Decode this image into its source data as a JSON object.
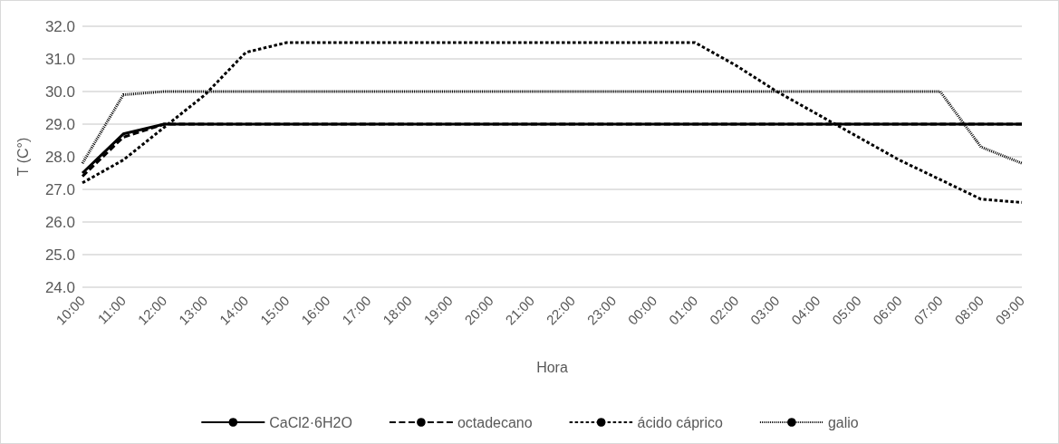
{
  "chart_data": {
    "type": "line",
    "xlabel": "Hora",
    "ylabel": "T (C°)",
    "categories": [
      "10:00",
      "11:00",
      "12:00",
      "13:00",
      "14:00",
      "15:00",
      "16:00",
      "17:00",
      "18:00",
      "19:00",
      "20:00",
      "21:00",
      "22:00",
      "23:00",
      "00:00",
      "01:00",
      "02:00",
      "03:00",
      "04:00",
      "05:00",
      "06:00",
      "07:00",
      "08:00",
      "09:00"
    ],
    "series": [
      {
        "name": "CaCl2·6H2O",
        "color": "#000000",
        "line_style": "solid",
        "values": [
          27.5,
          28.7,
          29.0,
          29.0,
          29.0,
          29.0,
          29.0,
          29.0,
          29.0,
          29.0,
          29.0,
          29.0,
          29.0,
          29.0,
          29.0,
          29.0,
          29.0,
          29.0,
          29.0,
          29.0,
          29.0,
          29.0,
          29.0,
          29.0
        ]
      },
      {
        "name": "octadecano",
        "color": "#000000",
        "line_style": "longdash",
        "values": [
          27.4,
          28.6,
          29.0,
          29.0,
          29.0,
          29.0,
          29.0,
          29.0,
          29.0,
          29.0,
          29.0,
          29.0,
          29.0,
          29.0,
          29.0,
          29.0,
          29.0,
          29.0,
          29.0,
          29.0,
          29.0,
          29.0,
          29.0,
          29.0
        ]
      },
      {
        "name": "ácido cáprico",
        "color": "#000000",
        "line_style": "dashed",
        "values": [
          27.2,
          27.9,
          28.9,
          29.9,
          31.2,
          31.5,
          31.5,
          31.5,
          31.5,
          31.5,
          31.5,
          31.5,
          31.5,
          31.5,
          31.5,
          31.5,
          30.8,
          30.0,
          29.3,
          28.6,
          27.9,
          27.3,
          26.7,
          26.6
        ]
      },
      {
        "name": "galio",
        "color": "#000000",
        "line_style": "dotted",
        "values": [
          27.8,
          29.9,
          30.0,
          30.0,
          30.0,
          30.0,
          30.0,
          30.0,
          30.0,
          30.0,
          30.0,
          30.0,
          30.0,
          30.0,
          30.0,
          30.0,
          30.0,
          30.0,
          30.0,
          30.0,
          30.0,
          30.0,
          28.3,
          27.8
        ]
      }
    ],
    "ylim": [
      24,
      32
    ],
    "yticks": [
      {
        "value": 24,
        "label": "24.0"
      },
      {
        "value": 25,
        "label": "25.0"
      },
      {
        "value": 26,
        "label": "26.0"
      },
      {
        "value": 27,
        "label": "27.0"
      },
      {
        "value": 28,
        "label": "28.0"
      },
      {
        "value": 29,
        "label": "29.0"
      },
      {
        "value": 30,
        "label": "30.0"
      },
      {
        "value": 31,
        "label": "31.0"
      },
      {
        "value": 32,
        "label": "32.0"
      }
    ],
    "grid": "y",
    "legend": "bottom",
    "marker": "none"
  }
}
